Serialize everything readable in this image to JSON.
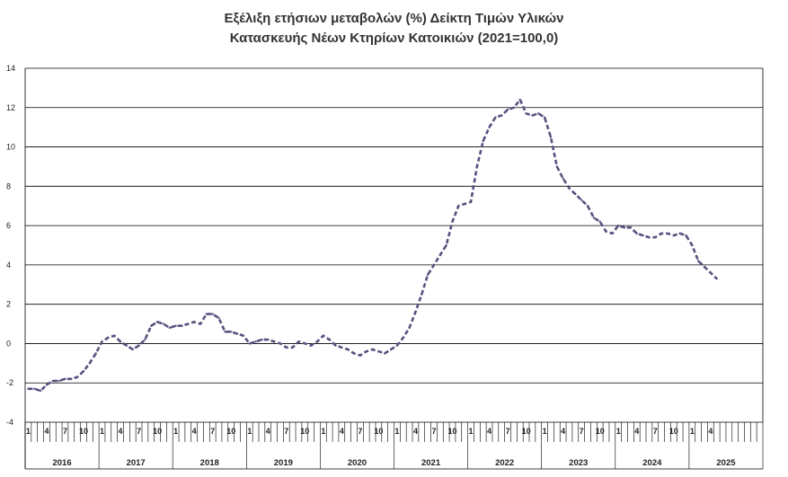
{
  "chart_data": {
    "type": "line",
    "title_line1": "Εξέλιξη ετήσιων μεταβολών (%) Δείκτη Τιμών Υλικών",
    "title_line2": "Κατασκευής Νέων Κτηρίων Κατοικιών (2021=100,0)",
    "xlabel": "",
    "ylabel": "",
    "ylim": [
      -4,
      14
    ],
    "yticks": [
      -4,
      -2,
      0,
      2,
      4,
      6,
      8,
      10,
      12,
      14
    ],
    "grid": true,
    "line_color": "#5b4f7f",
    "line_style": "dashed",
    "years": [
      "2016",
      "2017",
      "2018",
      "2019",
      "2020",
      "2021",
      "2022",
      "2023",
      "2024",
      "2025"
    ],
    "month_ticks": [
      "1",
      "4",
      "7",
      "10"
    ],
    "series": [
      {
        "values": [
          -2.3,
          -2.3,
          -2.4,
          -2.1,
          -1.9,
          -1.9,
          -1.8,
          -1.8,
          -1.7,
          -1.4,
          -1.0,
          -0.5,
          0.1,
          0.3,
          0.4,
          0.1,
          -0.1,
          -0.3,
          -0.1,
          0.2,
          0.9,
          1.1,
          1.0,
          0.8,
          0.9,
          0.9,
          1.0,
          1.1,
          1.0,
          1.5,
          1.5,
          1.3,
          0.6,
          0.6,
          0.5,
          0.4,
          0.0,
          0.1,
          0.2,
          0.2,
          0.1,
          0.0,
          -0.2,
          -0.2,
          0.1,
          0.0,
          -0.1,
          0.1,
          0.4,
          0.2,
          -0.1,
          -0.2,
          -0.3,
          -0.5,
          -0.6,
          -0.4,
          -0.3,
          -0.4,
          -0.5,
          -0.3,
          -0.1,
          0.3,
          0.8,
          1.6,
          2.5,
          3.5,
          4.0,
          4.5,
          5.0,
          6.2,
          7.0,
          7.1,
          7.2,
          9.0,
          10.3,
          11.0,
          11.5,
          11.6,
          11.9,
          12.0,
          12.4,
          11.7,
          11.6,
          11.7,
          11.5,
          10.5,
          9.0,
          8.4,
          7.9,
          7.6,
          7.3,
          7.0,
          6.4,
          6.2,
          5.7,
          5.6,
          6.0,
          5.9,
          5.9,
          5.6,
          5.5,
          5.4,
          5.4,
          5.6,
          5.6,
          5.5,
          5.6,
          5.5,
          5.0,
          4.2,
          3.9,
          3.6,
          3.3
        ]
      }
    ]
  }
}
